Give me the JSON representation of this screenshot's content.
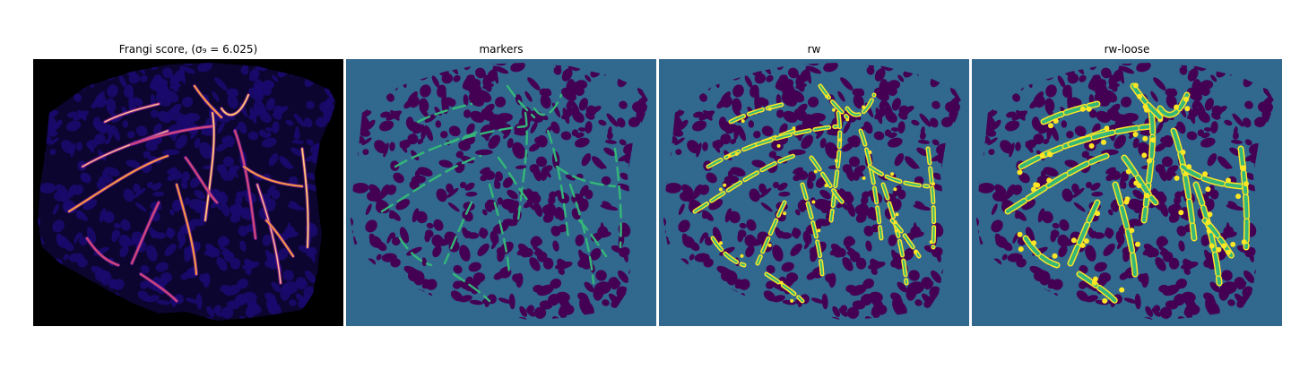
{
  "figure": {
    "panels": [
      {
        "title": "Frangi score, (σ₉ = 6.025)",
        "background": "#000000",
        "blob_fill": "#1a0a6e",
        "vessel_colors": [
          "#7a1fa2",
          "#d4467a",
          "#f89442",
          "#fbd7a0"
        ]
      },
      {
        "title": "markers",
        "background": "#31688e",
        "blob_fill": "#440154",
        "vessel_colors": [
          "#35b779"
        ]
      },
      {
        "title": "rw",
        "background": "#31688e",
        "blob_fill": "#440154",
        "vessel_colors": [
          "#35b779",
          "#fde725"
        ]
      },
      {
        "title": "rw-loose",
        "background": "#31688e",
        "blob_fill": "#440154",
        "vessel_colors": [
          "#35b779",
          "#fde725"
        ]
      }
    ]
  }
}
